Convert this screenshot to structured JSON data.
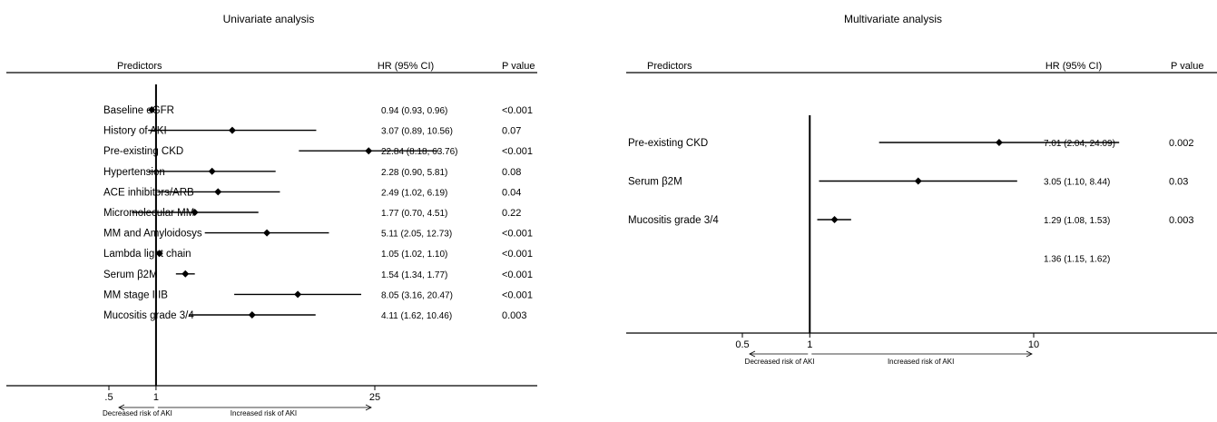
{
  "chart_data": [
    {
      "type": "forest",
      "title": "Univariate analysis",
      "columns": {
        "predictors": "Predictors",
        "hr": "HR (95% CI)",
        "p": "P value"
      },
      "scale": "log",
      "reference": 1,
      "xlim": [
        0.5,
        25
      ],
      "ticks": [
        {
          "value": 0.5,
          "label": ".5"
        },
        {
          "value": 1,
          "label": "1"
        },
        {
          "value": 25,
          "label": "25"
        }
      ],
      "direction_labels": {
        "left": "Decreased risk of AKI",
        "right": "Increased risk of AKI"
      },
      "rows": [
        {
          "label": "Baseline eGFR",
          "hr": 0.94,
          "lo": 0.93,
          "hi": 0.96,
          "hr_text": "0.94 (0.93, 0.96)",
          "p": "<0.001"
        },
        {
          "label": "History of AKI",
          "hr": 3.07,
          "lo": 0.89,
          "hi": 10.56,
          "hr_text": "3.07 (0.89, 10.56)",
          "p": "0.07"
        },
        {
          "label": "Pre-existing CKD",
          "hr": 22.84,
          "lo": 8.18,
          "hi": 63.76,
          "hr_text": "22.84 (8.18, 63.76)",
          "p": "<0.001"
        },
        {
          "label": "Hypertension",
          "hr": 2.28,
          "lo": 0.9,
          "hi": 5.81,
          "hr_text": "2.28 (0.90, 5.81)",
          "p": "0.08"
        },
        {
          "label": "ACE inhibitors/ARB",
          "hr": 2.49,
          "lo": 1.02,
          "hi": 6.19,
          "hr_text": "2.49 (1.02, 6.19)",
          "p": "0.04"
        },
        {
          "label": "Micromolecular MM",
          "hr": 1.77,
          "lo": 0.7,
          "hi": 4.51,
          "hr_text": "1.77 (0.70, 4.51)",
          "p": "0.22"
        },
        {
          "label": "MM and Amyloidosys",
          "hr": 5.11,
          "lo": 2.05,
          "hi": 12.73,
          "hr_text": "5.11 (2.05, 12.73)",
          "p": "<0.001"
        },
        {
          "label": "Lambda light chain",
          "hr": 1.05,
          "lo": 1.02,
          "hi": 1.1,
          "hr_text": "1.05 (1.02, 1.10)",
          "p": "<0.001"
        },
        {
          "label": "Serum β2M",
          "hr": 1.54,
          "lo": 1.34,
          "hi": 1.77,
          "hr_text": "1.54 (1.34, 1.77)",
          "p": "<0.001"
        },
        {
          "label": "MM stage IIIB",
          "hr": 8.05,
          "lo": 3.16,
          "hi": 20.47,
          "hr_text": "8.05 (3.16, 20.47)",
          "p": "<0.001"
        },
        {
          "label": "Mucositis grade 3/4",
          "hr": 4.11,
          "lo": 1.62,
          "hi": 10.46,
          "hr_text": "4.11 (1.62, 10.46)",
          "p": "0.003"
        }
      ]
    },
    {
      "type": "forest",
      "title": "Multivariate analysis",
      "columns": {
        "predictors": "Predictors",
        "hr": "HR (95% CI)",
        "p": "P value"
      },
      "scale": "log",
      "reference": 1,
      "xlim": [
        0.5,
        10
      ],
      "ticks": [
        {
          "value": 0.5,
          "label": "0.5"
        },
        {
          "value": 1,
          "label": "1"
        },
        {
          "value": 10,
          "label": "10"
        }
      ],
      "direction_labels": {
        "left": "Decreased risk of AKI",
        "right": "Increased risk of AKI"
      },
      "rows": [
        {
          "label": "Pre-existing CKD",
          "hr": 7.01,
          "lo": 2.04,
          "hi": 24.09,
          "hr_text": "7.01 (2.04, 24.09)",
          "p": "0.002"
        },
        {
          "label": "Serum β2M",
          "hr": 3.05,
          "lo": 1.1,
          "hi": 8.44,
          "hr_text": "3.05 (1.10, 8.44)",
          "p": "0.03"
        },
        {
          "label": "Mucositis grade 3/4",
          "hr": 1.29,
          "lo": 1.08,
          "hi": 1.53,
          "hr_text": "1.29 (1.08, 1.53)",
          "p": "0.003"
        },
        {
          "label": "",
          "hr": 1.36,
          "lo": 1.15,
          "hi": 1.62,
          "hr_text": "1.36 (1.15, 1.62)",
          "p": "",
          "no_marker": true
        }
      ]
    }
  ]
}
